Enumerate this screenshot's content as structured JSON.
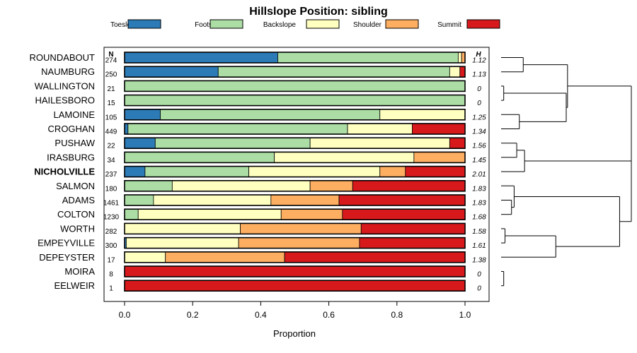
{
  "chart_data": {
    "type": "bar",
    "orientation": "horizontal",
    "stacked": true,
    "title": "Hillslope Position: sibling",
    "xlabel": "Proportion",
    "xlim": [
      0,
      1
    ],
    "xticks": [
      "0.0",
      "0.2",
      "0.4",
      "0.6",
      "0.8",
      "1.0"
    ],
    "n_header": "N",
    "h_header": "H",
    "legend": [
      {
        "name": "Toeslope",
        "color": "#2C7BB6"
      },
      {
        "name": "Footslope",
        "color": "#ABDDA4"
      },
      {
        "name": "Backslope",
        "color": "#FFFFBF"
      },
      {
        "name": "Shoulder",
        "color": "#FDAE61"
      },
      {
        "name": "Summit",
        "color": "#D7191C"
      }
    ],
    "rows": [
      {
        "name": "ROUNDABOUT",
        "n": "274",
        "h": "1.12",
        "bold": false,
        "values": [
          0.45,
          0.53,
          0.01,
          0.01,
          0.0
        ]
      },
      {
        "name": "NAUMBURG",
        "n": "250",
        "h": "1.13",
        "bold": false,
        "values": [
          0.275,
          0.68,
          0.03,
          0.0,
          0.015
        ]
      },
      {
        "name": "WALLINGTON",
        "n": "21",
        "h": "0",
        "bold": false,
        "values": [
          0.0,
          1.0,
          0.0,
          0.0,
          0.0
        ]
      },
      {
        "name": "HAILESBORO",
        "n": "15",
        "h": "0",
        "bold": false,
        "values": [
          0.0,
          1.0,
          0.0,
          0.0,
          0.0
        ]
      },
      {
        "name": "LAMOINE",
        "n": "105",
        "h": "1.25",
        "bold": false,
        "values": [
          0.105,
          0.645,
          0.25,
          0.0,
          0.0
        ]
      },
      {
        "name": "CROGHAN",
        "n": "449",
        "h": "1.34",
        "bold": false,
        "values": [
          0.01,
          0.645,
          0.19,
          0.0,
          0.155
        ]
      },
      {
        "name": "PUSHAW",
        "n": "22",
        "h": "1.56",
        "bold": false,
        "values": [
          0.09,
          0.455,
          0.41,
          0.0,
          0.045
        ]
      },
      {
        "name": "IRASBURG",
        "n": "34",
        "h": "1.45",
        "bold": false,
        "values": [
          0.0,
          0.44,
          0.41,
          0.15,
          0.0
        ]
      },
      {
        "name": "NICHOLVILLE",
        "n": "237",
        "h": "2.01",
        "bold": true,
        "values": [
          0.06,
          0.305,
          0.385,
          0.075,
          0.175
        ]
      },
      {
        "name": "SALMON",
        "n": "180",
        "h": "1.83",
        "bold": false,
        "values": [
          0.0,
          0.14,
          0.405,
          0.125,
          0.33
        ]
      },
      {
        "name": "ADAMS",
        "n": "1461",
        "h": "1.83",
        "bold": false,
        "values": [
          0.0,
          0.085,
          0.345,
          0.2,
          0.37
        ]
      },
      {
        "name": "COLTON",
        "n": "1230",
        "h": "1.68",
        "bold": false,
        "values": [
          0.0,
          0.04,
          0.42,
          0.18,
          0.36
        ]
      },
      {
        "name": "WORTH",
        "n": "282",
        "h": "1.58",
        "bold": false,
        "values": [
          0.0,
          0.0,
          0.34,
          0.355,
          0.305
        ]
      },
      {
        "name": "EMPEYVILLE",
        "n": "300",
        "h": "1.61",
        "bold": false,
        "values": [
          0.005,
          0.0,
          0.33,
          0.355,
          0.31
        ]
      },
      {
        "name": "DEPEYSTER",
        "n": "17",
        "h": "1.38",
        "bold": false,
        "values": [
          0.0,
          0.0,
          0.12,
          0.35,
          0.53
        ]
      },
      {
        "name": "MOIRA",
        "n": "8",
        "h": "0",
        "bold": false,
        "values": [
          0.0,
          0.0,
          0.0,
          0.0,
          1.0
        ]
      },
      {
        "name": "EELWEIR",
        "n": "1",
        "h": "0",
        "bold": false,
        "values": [
          0.0,
          0.0,
          0.0,
          0.0,
          1.0
        ]
      }
    ],
    "dendrogram": {
      "description": "hierarchical clustering of rows by hillslope position composition",
      "merges": [
        {
          "a": 2,
          "b": 3,
          "height": 0.02
        },
        {
          "a": 15,
          "b": 16,
          "height": 0.02
        },
        {
          "a": 12,
          "b": 13,
          "height": 0.03
        },
        {
          "a": 10,
          "b": 11,
          "height": 0.08
        },
        {
          "a": 6,
          "b": 7,
          "height": 0.12
        },
        {
          "a": 4,
          "b": 5,
          "height": 0.14
        },
        {
          "a": 0,
          "b": 1,
          "height": 0.17
        },
        {
          "a": "m3",
          "b": 9,
          "height": 0.1
        },
        {
          "a": "m0",
          "b": "m5",
          "height": 0.5
        },
        {
          "a": "m4",
          "b": 8,
          "height": 0.18
        },
        {
          "a": "m2",
          "b": 14,
          "height": 0.42
        },
        {
          "a": "m7",
          "b": "m10",
          "height": 0.91
        },
        {
          "a": "m6",
          "b": "m8",
          "height": 0.51
        },
        {
          "a": "m9",
          "b": "m11",
          "height": 1.0
        },
        {
          "a": "m12",
          "b": "m13",
          "height": 1.0
        }
      ]
    }
  }
}
